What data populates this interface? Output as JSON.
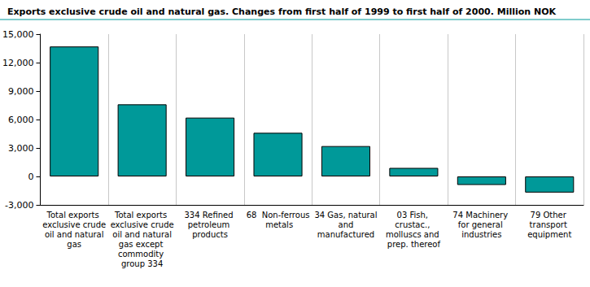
{
  "chart_data": {
    "type": "bar",
    "title": "Exports exclusive crude oil and natural gas. Changes from first half of 1999 to first half of 2000. Million NOK",
    "categories": [
      "Total exports exclusive crude oil and natural gas",
      "Total exports exclusive crude oil and natural gas except commodity group 334",
      "334 Refined petroleum products",
      "68  Non-ferrous metals",
      "34 Gas, natural and manufactured",
      "03 Fish, crustac., molluscs and prep. thereof",
      "74 Machinery for general industries",
      "79 Other transport equipment"
    ],
    "values": [
      13700,
      7600,
      6200,
      4600,
      3200,
      900,
      -900,
      -1700
    ],
    "color": "#009999",
    "ylim": [
      -3000,
      15000
    ],
    "yticks": [
      -3000,
      0,
      3000,
      6000,
      9000,
      12000,
      15000
    ],
    "grid": true
  }
}
